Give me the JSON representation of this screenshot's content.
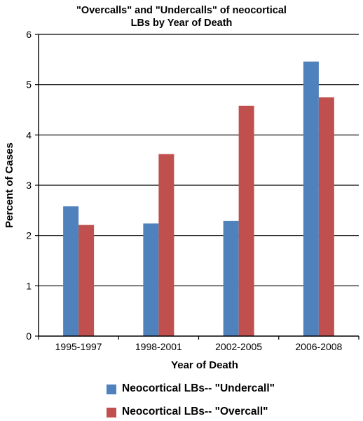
{
  "chart_data": {
    "type": "bar",
    "title_lines": [
      "\"Overcalls\" and \"Undercalls\" of neocortical",
      "LBs by Year of Death"
    ],
    "xlabel": "Year of Death",
    "ylabel": "Percent of Cases",
    "categories": [
      "1995-1997",
      "1998-2001",
      "2002-2005",
      "2006-2008"
    ],
    "ylim": [
      0,
      6
    ],
    "yticks": [
      0,
      1,
      2,
      3,
      4,
      5,
      6
    ],
    "grid": true,
    "legend_position": "bottom",
    "series": [
      {
        "name": "Neocortical LBs-- \"Undercall\"",
        "color": "#4f81bd",
        "values": [
          2.58,
          2.24,
          2.29,
          5.46
        ]
      },
      {
        "name": "Neocortical LBs-- \"Overcall\"",
        "color": "#c0504d",
        "values": [
          2.21,
          3.62,
          4.58,
          4.75
        ]
      }
    ]
  }
}
